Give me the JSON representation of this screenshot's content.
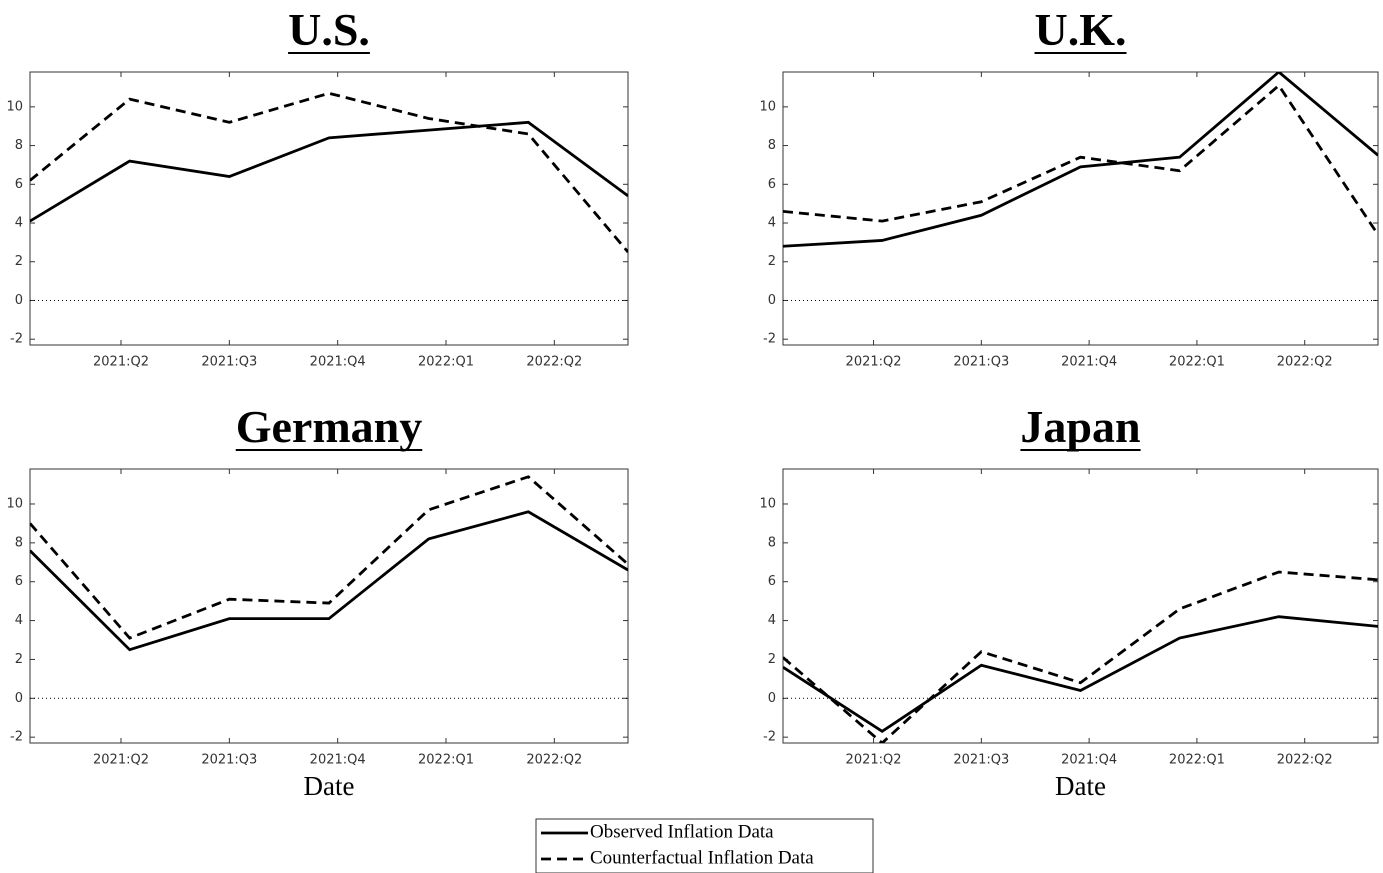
{
  "chart_data": [
    {
      "type": "line",
      "title": "U.S.",
      "x": [
        2021.04,
        2021.27,
        2021.5,
        2021.73,
        2021.96,
        2022.19,
        2022.42
      ],
      "series": [
        {
          "name": "Observed Inflation Data",
          "color": "#000000",
          "line_style": "solid",
          "values": [
            4.1,
            7.2,
            6.4,
            8.4,
            8.8,
            9.2,
            5.4
          ]
        },
        {
          "name": "Counterfactual Inflation Data",
          "color": "#000000",
          "line_style": "dashed",
          "values": [
            6.2,
            10.4,
            9.2,
            10.7,
            9.4,
            8.6,
            2.5
          ]
        }
      ],
      "xlim": [
        2021.04,
        2022.42
      ],
      "xticks": [
        {
          "value": 2021.25,
          "label": "2021:Q2"
        },
        {
          "value": 2021.5,
          "label": "2021:Q3"
        },
        {
          "value": 2021.75,
          "label": "2021:Q4"
        },
        {
          "value": 2022.0,
          "label": "2022:Q1"
        },
        {
          "value": 2022.25,
          "label": "2022:Q2"
        }
      ],
      "ylim": [
        -2.3,
        11.8
      ],
      "yticks": [
        -2,
        0,
        2,
        4,
        6,
        8,
        10
      ],
      "zero_line": true
    },
    {
      "type": "line",
      "title": "U.K.",
      "x": [
        2021.04,
        2021.27,
        2021.5,
        2021.73,
        2021.96,
        2022.19,
        2022.42
      ],
      "series": [
        {
          "color": "#000000",
          "line_style": "solid",
          "values": [
            2.8,
            3.1,
            4.4,
            6.9,
            7.4,
            11.8,
            7.5
          ]
        },
        {
          "color": "#000000",
          "line_style": "dashed",
          "values": [
            4.6,
            4.1,
            5.1,
            7.4,
            6.7,
            11.1,
            3.4
          ]
        }
      ],
      "xlim": [
        2021.04,
        2022.42
      ],
      "xticks": [
        {
          "value": 2021.25,
          "label": "2021:Q2"
        },
        {
          "value": 2021.5,
          "label": "2021:Q3"
        },
        {
          "value": 2021.75,
          "label": "2021:Q4"
        },
        {
          "value": 2022.0,
          "label": "2022:Q1"
        },
        {
          "value": 2022.25,
          "label": "2022:Q2"
        }
      ],
      "ylim": [
        -2.3,
        11.8
      ],
      "yticks": [
        -2,
        0,
        2,
        4,
        6,
        8,
        10
      ],
      "zero_line": true
    },
    {
      "type": "line",
      "title": "Germany",
      "x_label": "Date",
      "x": [
        2021.04,
        2021.27,
        2021.5,
        2021.73,
        2021.96,
        2022.19,
        2022.42
      ],
      "series": [
        {
          "color": "#000000",
          "line_style": "solid",
          "values": [
            7.6,
            2.5,
            4.1,
            4.1,
            8.2,
            9.6,
            6.6
          ]
        },
        {
          "color": "#000000",
          "line_style": "dashed",
          "values": [
            9.0,
            3.1,
            5.1,
            4.9,
            9.7,
            11.4,
            6.9
          ]
        }
      ],
      "xlim": [
        2021.04,
        2022.42
      ],
      "xticks": [
        {
          "value": 2021.25,
          "label": "2021:Q2"
        },
        {
          "value": 2021.5,
          "label": "2021:Q3"
        },
        {
          "value": 2021.75,
          "label": "2021:Q4"
        },
        {
          "value": 2022.0,
          "label": "2022:Q1"
        },
        {
          "value": 2022.25,
          "label": "2022:Q2"
        }
      ],
      "ylim": [
        -2.3,
        11.8
      ],
      "yticks": [
        -2,
        0,
        2,
        4,
        6,
        8,
        10
      ],
      "zero_line": true
    },
    {
      "type": "line",
      "title": "Japan",
      "x_label": "Date",
      "x": [
        2021.04,
        2021.27,
        2021.5,
        2021.73,
        2021.96,
        2022.19,
        2022.42
      ],
      "series": [
        {
          "color": "#000000",
          "line_style": "solid",
          "values": [
            1.6,
            -1.7,
            1.7,
            0.4,
            3.1,
            4.2,
            3.7
          ]
        },
        {
          "color": "#000000",
          "line_style": "dashed",
          "values": [
            2.1,
            -2.3,
            2.4,
            0.8,
            4.6,
            6.5,
            6.1
          ]
        }
      ],
      "xlim": [
        2021.04,
        2022.42
      ],
      "xticks": [
        {
          "value": 2021.25,
          "label": "2021:Q2"
        },
        {
          "value": 2021.5,
          "label": "2021:Q3"
        },
        {
          "value": 2021.75,
          "label": "2021:Q4"
        },
        {
          "value": 2022.0,
          "label": "2022:Q1"
        },
        {
          "value": 2022.25,
          "label": "2022:Q2"
        }
      ],
      "ylim": [
        -2.3,
        11.8
      ],
      "yticks": [
        -2,
        0,
        2,
        4,
        6,
        8,
        10
      ],
      "zero_line": true
    }
  ]
}
